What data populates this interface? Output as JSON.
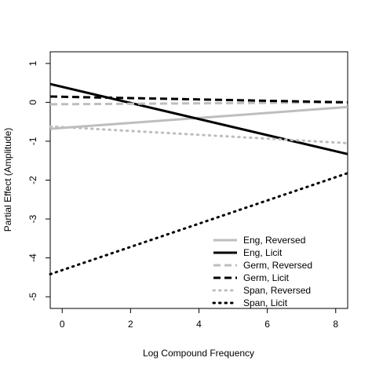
{
  "chart_data": {
    "type": "line",
    "title": "",
    "xlabel": "Log Compound Frequency",
    "ylabel": "Partial Effect (Amplitude)",
    "xlim": [
      -0.35,
      8.35
    ],
    "ylim": [
      -5.3,
      1.3
    ],
    "xticks": [
      0,
      2,
      4,
      6,
      8
    ],
    "yticks": [
      -5,
      -4,
      -3,
      -2,
      -1,
      0,
      1
    ],
    "grid": false,
    "legend_position": "bottom-right",
    "series": [
      {
        "name": "Eng, Reversed",
        "color": "#bebebe",
        "dash": "solid",
        "x": [
          -0.35,
          8.35
        ],
        "y": [
          -0.68,
          -0.12
        ]
      },
      {
        "name": "Eng, Licit",
        "color": "#000000",
        "dash": "solid",
        "x": [
          -0.35,
          8.35
        ],
        "y": [
          0.47,
          -1.33
        ]
      },
      {
        "name": "Germ, Reversed",
        "color": "#bebebe",
        "dash": "dashed",
        "x": [
          -0.35,
          8.35
        ],
        "y": [
          -0.05,
          0.0
        ]
      },
      {
        "name": "Germ, Licit",
        "color": "#000000",
        "dash": "dashed",
        "x": [
          -0.35,
          8.35
        ],
        "y": [
          0.15,
          0.0
        ]
      },
      {
        "name": "Span, Reversed",
        "color": "#bebebe",
        "dash": "dotted",
        "x": [
          -0.35,
          8.35
        ],
        "y": [
          -0.62,
          -1.05
        ]
      },
      {
        "name": "Span, Licit",
        "color": "#000000",
        "dash": "dotted",
        "x": [
          -0.35,
          8.35
        ],
        "y": [
          -4.42,
          -1.82
        ]
      }
    ]
  }
}
